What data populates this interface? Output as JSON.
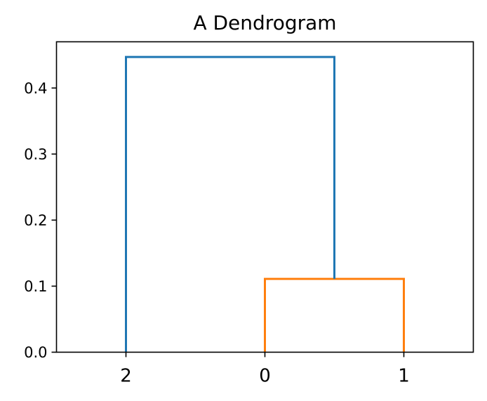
{
  "chart_data": {
    "type": "dendrogram",
    "title": "A Dendrogram",
    "xlabel": "",
    "ylabel": "",
    "leaves": [
      "2",
      "0",
      "1"
    ],
    "ylim": [
      0,
      0.47
    ],
    "yticks": [
      0.0,
      0.1,
      0.2,
      0.3,
      0.4
    ],
    "ytick_labels": [
      "0.0",
      "0.1",
      "0.2",
      "0.3",
      "0.4"
    ],
    "grid": false,
    "links": [
      {
        "name": "link-0-1",
        "left_leaf": "0",
        "right_leaf": "1",
        "height": 0.111,
        "color": "#ff7f0e",
        "left_child_height": 0.0,
        "right_child_height": 0.0
      },
      {
        "name": "link-2-root",
        "left_leaf": "2",
        "right_cluster": [
          "0",
          "1"
        ],
        "height": 0.447,
        "color": "#1f77b4",
        "left_child_height": 0.0,
        "right_child_height": 0.111
      }
    ]
  }
}
